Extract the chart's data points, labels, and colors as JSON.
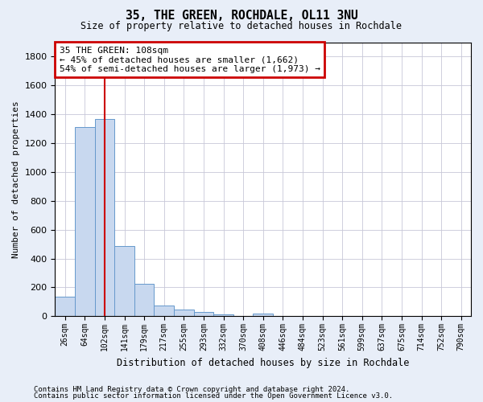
{
  "title": "35, THE GREEN, ROCHDALE, OL11 3NU",
  "subtitle": "Size of property relative to detached houses in Rochdale",
  "xlabel": "Distribution of detached houses by size in Rochdale",
  "ylabel": "Number of detached properties",
  "footer_line1": "Contains HM Land Registry data © Crown copyright and database right 2024.",
  "footer_line2": "Contains public sector information licensed under the Open Government Licence v3.0.",
  "bar_labels": [
    "26sqm",
    "64sqm",
    "102sqm",
    "141sqm",
    "179sqm",
    "217sqm",
    "255sqm",
    "293sqm",
    "332sqm",
    "370sqm",
    "408sqm",
    "446sqm",
    "484sqm",
    "523sqm",
    "561sqm",
    "599sqm",
    "637sqm",
    "675sqm",
    "714sqm",
    "752sqm",
    "790sqm"
  ],
  "bar_values": [
    135,
    1310,
    1365,
    485,
    225,
    75,
    45,
    30,
    15,
    0,
    20,
    0,
    0,
    0,
    0,
    0,
    0,
    0,
    0,
    0,
    0
  ],
  "bar_color": "#c8d8ef",
  "bar_edge_color": "#6699cc",
  "property_line_x": 2,
  "property_line_color": "#cc0000",
  "annotation_box_text": "35 THE GREEN: 108sqm\n← 45% of detached houses are smaller (1,662)\n54% of semi-detached houses are larger (1,973) →",
  "annotation_box_color": "#cc0000",
  "annotation_box_bg": "#ffffff",
  "ylim": [
    0,
    1900
  ],
  "ytick_interval": 200,
  "background_color": "#e8eef8",
  "plot_bg_color": "#ffffff",
  "grid_color": "#c8c8d8",
  "figsize": [
    6.0,
    5.0
  ],
  "dpi": 100
}
